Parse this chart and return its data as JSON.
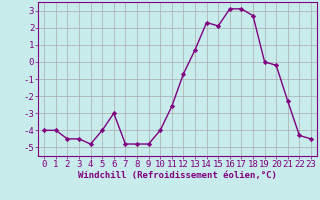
{
  "x": [
    0,
    1,
    2,
    3,
    4,
    5,
    6,
    7,
    8,
    9,
    10,
    11,
    12,
    13,
    14,
    15,
    16,
    17,
    18,
    19,
    20,
    21,
    22,
    23
  ],
  "y": [
    -4.0,
    -4.0,
    -4.5,
    -4.5,
    -4.8,
    -4.0,
    -3.0,
    -4.8,
    -4.8,
    -4.8,
    -4.0,
    -2.6,
    -0.7,
    0.7,
    2.3,
    2.1,
    3.1,
    3.1,
    2.7,
    0.0,
    -0.2,
    -2.3,
    -4.3,
    -4.5
  ],
  "line_color": "#800080",
  "marker": "D",
  "marker_size": 2.2,
  "bg_color": "#c8ecec",
  "grid_color": "#aaaaaa",
  "xlabel": "Windchill (Refroidissement éolien,°C)",
  "ylim": [
    -5.5,
    3.5
  ],
  "xlim": [
    -0.5,
    23.5
  ],
  "yticks": [
    -5,
    -4,
    -3,
    -2,
    -1,
    0,
    1,
    2,
    3
  ],
  "xticks": [
    0,
    1,
    2,
    3,
    4,
    5,
    6,
    7,
    8,
    9,
    10,
    11,
    12,
    13,
    14,
    15,
    16,
    17,
    18,
    19,
    20,
    21,
    22,
    23
  ],
  "xlabel_fontsize": 6.5,
  "tick_fontsize": 6.5,
  "line_width": 1.0
}
